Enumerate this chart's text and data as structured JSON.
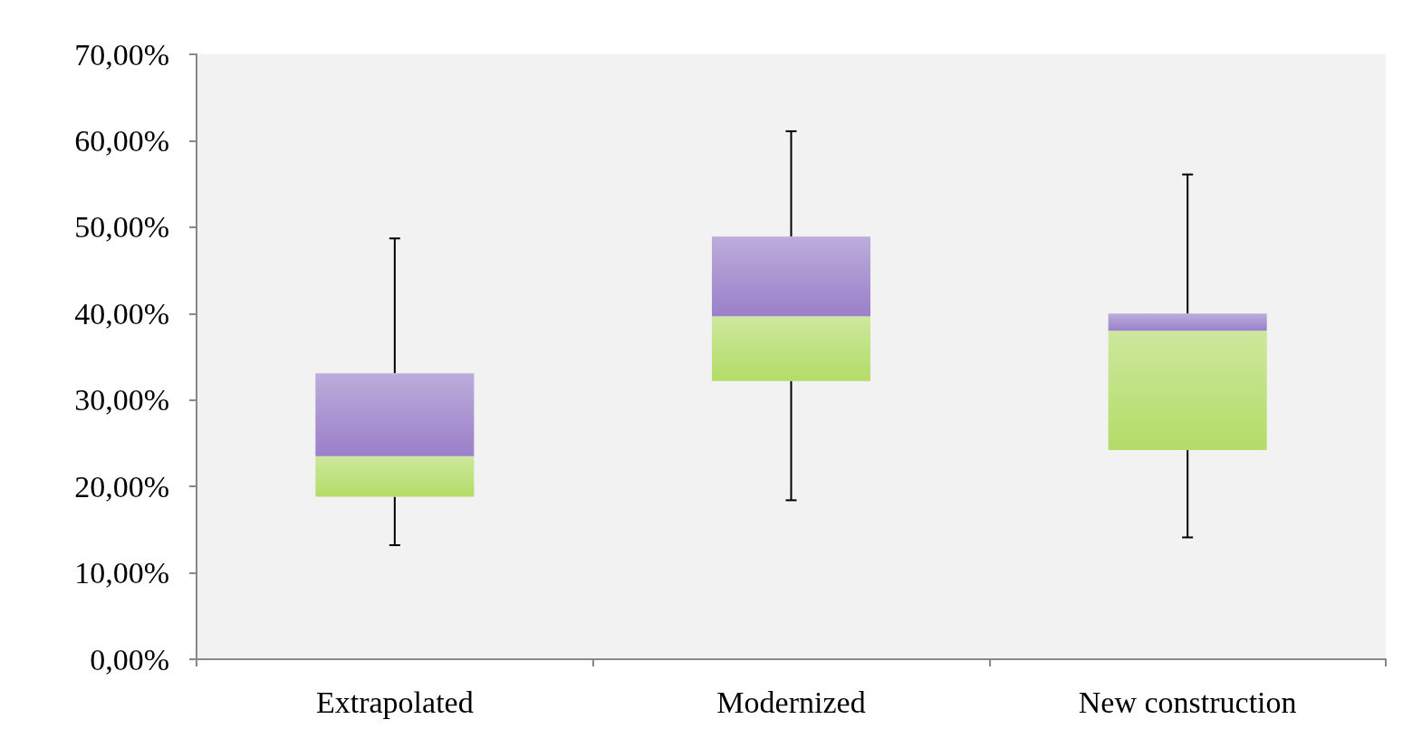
{
  "chart_data": {
    "type": "box",
    "categories": [
      "Extrapolated",
      "Modernized",
      "New construction"
    ],
    "series": [
      {
        "color": "#9a80c9",
        "colors": [
          "#b3dc68",
          "#b3dc68",
          "#b3dc68"
        ],
        "boxes": [
          {
            "low": 13.2,
            "q1": 18.8,
            "median": 23.5,
            "q3": 33.1,
            "high": 48.7
          },
          {
            "low": 18.4,
            "q1": 32.2,
            "median": 39.7,
            "q3": 48.9,
            "high": 61.1
          },
          {
            "low": 14.1,
            "q1": 24.2,
            "median": 38.0,
            "q3": 40.0,
            "high": 56.1
          }
        ]
      }
    ],
    "ylim": [
      0,
      70
    ],
    "yticks": [
      {
        "value": 0,
        "label": "0,00%"
      },
      {
        "value": 10,
        "label": "10,00%"
      },
      {
        "value": 20,
        "label": "20,00%"
      },
      {
        "value": 30,
        "label": "30,00%"
      },
      {
        "value": 40,
        "label": "40,00%"
      },
      {
        "value": 50,
        "label": "50,00%"
      },
      {
        "value": 60,
        "label": "60,00%"
      },
      {
        "value": 70,
        "label": "70,00%"
      }
    ],
    "grid": false
  }
}
